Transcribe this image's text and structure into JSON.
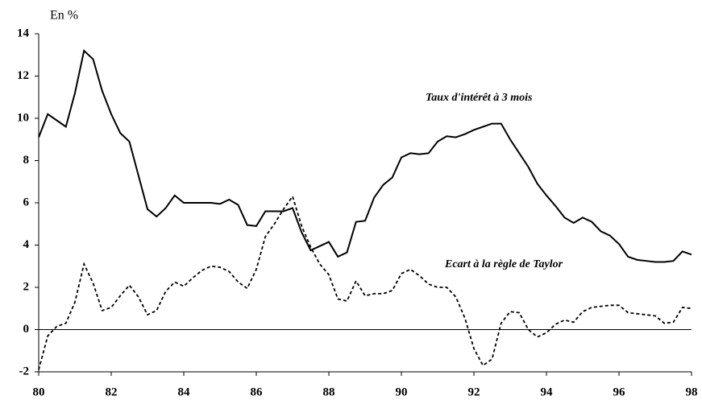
{
  "chart_data": {
    "type": "line",
    "y_label": "En %",
    "x": [
      80,
      80.25,
      80.5,
      80.75,
      81,
      81.25,
      81.5,
      81.75,
      82,
      82.25,
      82.5,
      82.75,
      83,
      83.25,
      83.5,
      83.75,
      84,
      84.25,
      84.5,
      84.75,
      85,
      85.25,
      85.5,
      85.75,
      86,
      86.25,
      86.5,
      86.75,
      87,
      87.25,
      87.5,
      87.75,
      88,
      88.25,
      88.5,
      88.75,
      89,
      89.25,
      89.5,
      89.75,
      90,
      90.25,
      90.5,
      90.75,
      91,
      91.25,
      91.5,
      91.75,
      92,
      92.25,
      92.5,
      92.75,
      93,
      93.25,
      93.5,
      93.75,
      94,
      94.25,
      94.5,
      94.75,
      95,
      95.25,
      95.5,
      95.75,
      96,
      96.25,
      96.5,
      96.75,
      97,
      97.25,
      97.5,
      97.75,
      98
    ],
    "series": [
      {
        "name": "Taux d'intérêt à 3 mois",
        "color": "#000000",
        "dash": false,
        "values": [
          9.1,
          10.2,
          9.9,
          9.6,
          11.2,
          13.2,
          12.8,
          11.3,
          10.2,
          9.3,
          8.9,
          7.3,
          5.7,
          5.35,
          5.75,
          6.35,
          6.0,
          6.0,
          6.0,
          6.0,
          5.95,
          6.15,
          5.9,
          4.95,
          4.9,
          5.6,
          5.6,
          5.6,
          5.75,
          4.6,
          3.75,
          3.95,
          4.15,
          3.45,
          3.65,
          5.1,
          5.15,
          6.25,
          6.85,
          7.2,
          8.15,
          8.35,
          8.3,
          8.35,
          8.9,
          9.15,
          9.1,
          9.25,
          9.45,
          9.6,
          9.75,
          9.75,
          9.0,
          8.35,
          7.7,
          6.9,
          6.35,
          5.85,
          5.3,
          5.05,
          5.3,
          5.1,
          4.65,
          4.45,
          4.05,
          3.45,
          3.3,
          3.25,
          3.2,
          3.2,
          3.25,
          3.7,
          3.55
        ]
      },
      {
        "name": "Ecart à la règle de Taylor",
        "color": "#000000",
        "dash": true,
        "values": [
          -1.9,
          -0.3,
          0.15,
          0.3,
          1.3,
          3.1,
          2.2,
          0.9,
          1.05,
          1.6,
          2.1,
          1.55,
          0.7,
          0.9,
          1.8,
          2.25,
          2.05,
          2.45,
          2.8,
          3.0,
          2.95,
          2.75,
          2.25,
          1.95,
          2.85,
          4.4,
          5.0,
          5.7,
          6.3,
          4.9,
          3.9,
          3.1,
          2.6,
          1.45,
          1.35,
          2.3,
          1.6,
          1.7,
          1.7,
          1.85,
          2.65,
          2.85,
          2.55,
          2.15,
          2.0,
          2.0,
          1.55,
          0.55,
          -0.9,
          -1.7,
          -1.4,
          0.3,
          0.85,
          0.8,
          0.0,
          -0.35,
          -0.15,
          0.25,
          0.45,
          0.35,
          0.85,
          1.05,
          1.1,
          1.15,
          1.15,
          0.8,
          0.75,
          0.7,
          0.65,
          0.3,
          0.35,
          1.05,
          1.0
        ]
      }
    ],
    "xlim": [
      80,
      98
    ],
    "xticks": [
      80,
      82,
      84,
      86,
      88,
      90,
      92,
      94,
      96,
      98
    ],
    "ylim": [
      -2,
      14
    ],
    "yticks": [
      -2,
      0,
      2,
      4,
      6,
      8,
      10,
      12,
      14
    ]
  }
}
